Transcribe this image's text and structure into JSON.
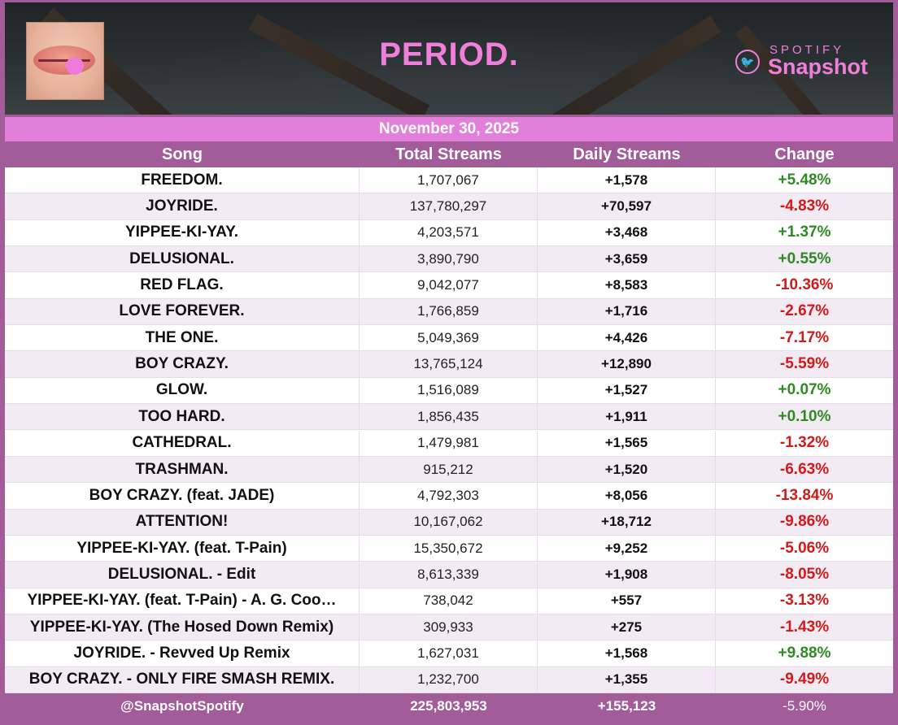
{
  "header": {
    "title": "PERIOD.",
    "brand_top": "SPOTIFY",
    "brand_bottom": "Snapshot",
    "brand_icon": "twitter-bird-icon"
  },
  "date": "November 30, 2025",
  "columns": [
    "Song",
    "Total Streams",
    "Daily Streams",
    "Change"
  ],
  "rows": [
    {
      "song": "FREEDOM.",
      "total": "1,707,067",
      "daily": "+1,578",
      "change": "+5.48%"
    },
    {
      "song": "JOYRIDE.",
      "total": "137,780,297",
      "daily": "+70,597",
      "change": "-4.83%"
    },
    {
      "song": "YIPPEE-KI-YAY.",
      "total": "4,203,571",
      "daily": "+3,468",
      "change": "+1.37%"
    },
    {
      "song": "DELUSIONAL.",
      "total": "3,890,790",
      "daily": "+3,659",
      "change": "+0.55%"
    },
    {
      "song": "RED FLAG.",
      "total": "9,042,077",
      "daily": "+8,583",
      "change": "-10.36%"
    },
    {
      "song": "LOVE FOREVER.",
      "total": "1,766,859",
      "daily": "+1,716",
      "change": "-2.67%"
    },
    {
      "song": "THE ONE.",
      "total": "5,049,369",
      "daily": "+4,426",
      "change": "-7.17%"
    },
    {
      "song": "BOY CRAZY.",
      "total": "13,765,124",
      "daily": "+12,890",
      "change": "-5.59%"
    },
    {
      "song": "GLOW.",
      "total": "1,516,089",
      "daily": "+1,527",
      "change": "+0.07%"
    },
    {
      "song": "TOO HARD.",
      "total": "1,856,435",
      "daily": "+1,911",
      "change": "+0.10%"
    },
    {
      "song": "CATHEDRAL.",
      "total": "1,479,981",
      "daily": "+1,565",
      "change": "-1.32%"
    },
    {
      "song": "TRASHMAN.",
      "total": "915,212",
      "daily": "+1,520",
      "change": "-6.63%"
    },
    {
      "song": "BOY CRAZY. (feat. JADE)",
      "total": "4,792,303",
      "daily": "+8,056",
      "change": "-13.84%"
    },
    {
      "song": "ATTENTION!",
      "total": "10,167,062",
      "daily": "+18,712",
      "change": "-9.86%"
    },
    {
      "song": "YIPPEE-KI-YAY. (feat. T-Pain)",
      "total": "15,350,672",
      "daily": "+9,252",
      "change": "-5.06%"
    },
    {
      "song": "DELUSIONAL. - Edit",
      "total": "8,613,339",
      "daily": "+1,908",
      "change": "-8.05%"
    },
    {
      "song": "YIPPEE-KI-YAY. (feat. T-Pain) - A. G. Coo…",
      "total": "738,042",
      "daily": "+557",
      "change": "-3.13%"
    },
    {
      "song": "YIPPEE-KI-YAY. (The Hosed Down Remix)",
      "total": "309,933",
      "daily": "+275",
      "change": "-1.43%"
    },
    {
      "song": "JOYRIDE. - Revved Up Remix",
      "total": "1,627,031",
      "daily": "+1,568",
      "change": "+9.88%"
    },
    {
      "song": "BOY CRAZY. - ONLY FIRE SMASH REMIX.",
      "total": "1,232,700",
      "daily": "+1,355",
      "change": "-9.49%"
    }
  ],
  "footer": {
    "handle": "@SnapshotSpotify",
    "total": "225,803,953",
    "daily": "+155,123",
    "change": "-5.90%"
  },
  "colors": {
    "accent_pink": "#f07fdb",
    "frame_purple": "#a25c99",
    "positive": "#2e8b22",
    "negative": "#d11a1a"
  }
}
